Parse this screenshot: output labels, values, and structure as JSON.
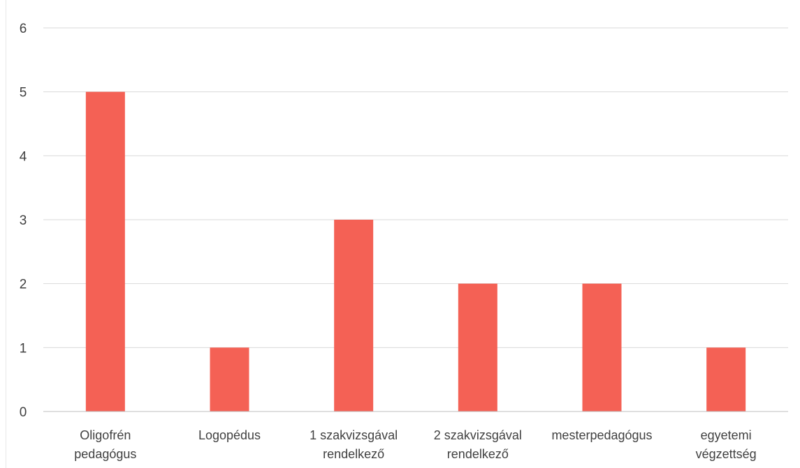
{
  "chart_data": {
    "type": "bar",
    "title": "",
    "xlabel": "",
    "ylabel": "",
    "categories": [
      [
        "Oligofrén",
        "pedagógus"
      ],
      [
        "Logopédus"
      ],
      [
        "1 szakvizsgával",
        "rendelkező"
      ],
      [
        "2 szakvizsgával",
        "rendelkező"
      ],
      [
        "mesterpedagógus"
      ],
      [
        "egyetemi",
        "végzettség"
      ]
    ],
    "values": [
      5,
      1,
      3,
      2,
      2,
      1
    ],
    "ylim": [
      0,
      6
    ],
    "yticks": [
      "0",
      "1",
      "2",
      "3",
      "4",
      "5",
      "6"
    ],
    "grid": true,
    "legend": "none",
    "bar_color": "#f46155",
    "grid_color": "#d9d9d9",
    "axis_color": "#bfbfbf",
    "label_color": "#404040"
  }
}
